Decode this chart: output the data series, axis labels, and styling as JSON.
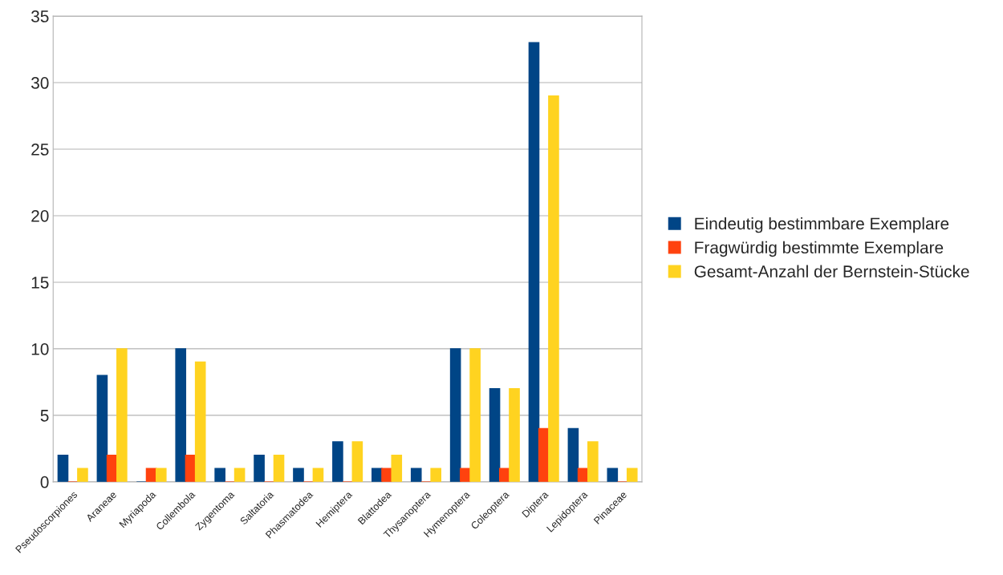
{
  "chart_data": {
    "type": "bar",
    "categories": [
      "Pseudoscorpiones",
      "Araneae",
      "Myriapoda",
      "Collembola",
      "Zygentoma",
      "Saltatoria",
      "Phasmatodea",
      "Hemiptera",
      "Blattodea",
      "Thysanoptera",
      "Hymenoptera",
      "Coleoptera",
      "Diptera",
      "Lepidoptera",
      "Pinaceae"
    ],
    "series": [
      {
        "name": "Eindeutig bestimmbare Exemplare",
        "color": "#004586",
        "values": [
          2,
          8,
          0,
          10,
          1,
          2,
          1,
          3,
          1,
          1,
          10,
          7,
          33,
          4,
          1
        ]
      },
      {
        "name": "Fragwürdig bestimmte Exemplare",
        "color": "#ff420e",
        "values": [
          0,
          2,
          1,
          2,
          0,
          0,
          0,
          0,
          1,
          0,
          1,
          1,
          4,
          1,
          0
        ]
      },
      {
        "name": "Gesamt-Anzahl der Bernstein-Stücke",
        "color": "#ffd320",
        "values": [
          1,
          10,
          1,
          9,
          1,
          2,
          1,
          3,
          2,
          1,
          10,
          7,
          29,
          3,
          1
        ]
      }
    ],
    "ylim": [
      0,
      35
    ],
    "yticks": [
      0,
      5,
      10,
      15,
      20,
      25,
      30,
      35
    ],
    "grid": "y",
    "legend": "right"
  }
}
